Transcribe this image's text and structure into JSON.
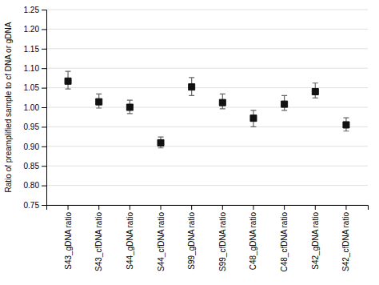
{
  "chart_data": {
    "type": "errorbar",
    "ylabel": "Ratio of preamplified sample to cf DNA or gDNA",
    "categories": [
      "S43_gDNA ratio",
      "S43_cfDNA ratio",
      "S44_gDNA ratio",
      "S44_cfDNA ratio",
      "S99_gDNA ratio",
      "S99_cfDNA ratio",
      "C48_gDNA ratio",
      "C48_cfDNA ratio",
      "S42_gDNA ratio",
      "S42_cfDNA ratio"
    ],
    "values": [
      1.067,
      1.014,
      1.0,
      0.909,
      1.052,
      1.012,
      0.972,
      1.008,
      1.04,
      0.955
    ],
    "yerr_low": [
      0.02,
      0.016,
      0.016,
      0.013,
      0.022,
      0.016,
      0.022,
      0.016,
      0.016,
      0.016
    ],
    "yerr_high": [
      0.025,
      0.02,
      0.018,
      0.015,
      0.024,
      0.022,
      0.02,
      0.022,
      0.022,
      0.018
    ],
    "color": "#111111",
    "marker": "square",
    "ylim": [
      0.75,
      1.25
    ],
    "yticks": [
      0.75,
      {
        "value": 0.8,
        "label": "0.80"
      },
      0.85,
      {
        "value": 0.9,
        "label": "0.90"
      },
      0.95,
      {
        "value": 1.0,
        "label": "1.00"
      },
      1.05,
      {
        "value": 1.1,
        "label": "1.10"
      },
      1.15,
      {
        "value": 1.2,
        "label": "1.20"
      },
      1.25
    ],
    "grid": true
  }
}
